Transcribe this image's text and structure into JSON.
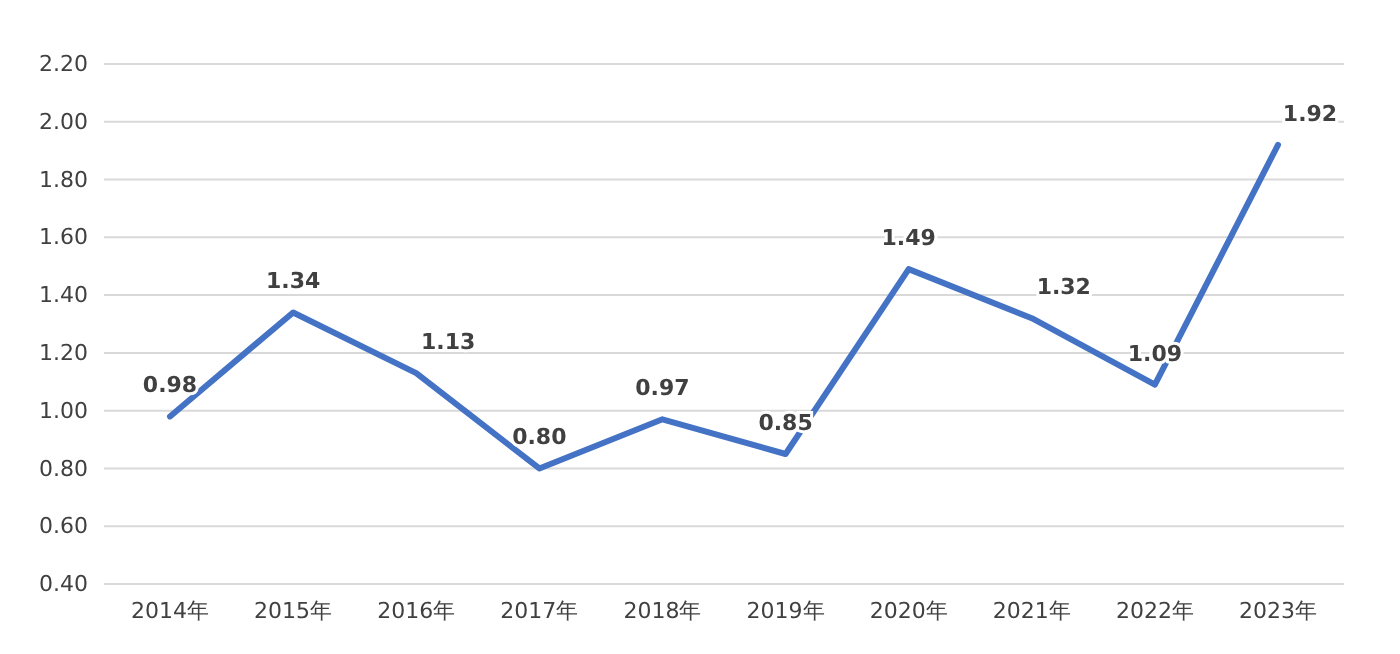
{
  "chart_data": {
    "type": "line",
    "categories": [
      "2014年",
      "2015年",
      "2016年",
      "2017年",
      "2018年",
      "2019年",
      "2020年",
      "2021年",
      "2022年",
      "2023年"
    ],
    "series": [
      {
        "color": "#4472c4",
        "values": [
          0.98,
          1.34,
          1.13,
          0.8,
          0.97,
          0.85,
          1.49,
          1.32,
          1.09,
          1.92
        ],
        "value_labels": [
          "0.98",
          "1.34",
          "1.13",
          "0.80",
          "0.97",
          "0.85",
          "1.49",
          "1.32",
          "1.09",
          "1.92"
        ]
      }
    ],
    "ylim": [
      0.4,
      2.2
    ],
    "yticks": [
      {
        "value": 0.4,
        "label": "0.40"
      },
      {
        "value": 0.6,
        "label": "0.60"
      },
      {
        "value": 0.8,
        "label": "0.80"
      },
      {
        "value": 1.0,
        "label": "1.00"
      },
      {
        "value": 1.2,
        "label": "1.20"
      },
      {
        "value": 1.4,
        "label": "1.40"
      },
      {
        "value": 1.6,
        "label": "1.60"
      },
      {
        "value": 1.8,
        "label": "1.80"
      },
      {
        "value": 2.0,
        "label": "2.00"
      },
      {
        "value": 2.2,
        "label": "2.20"
      }
    ],
    "grid": "y",
    "marker": "none",
    "line_style": "solid"
  }
}
